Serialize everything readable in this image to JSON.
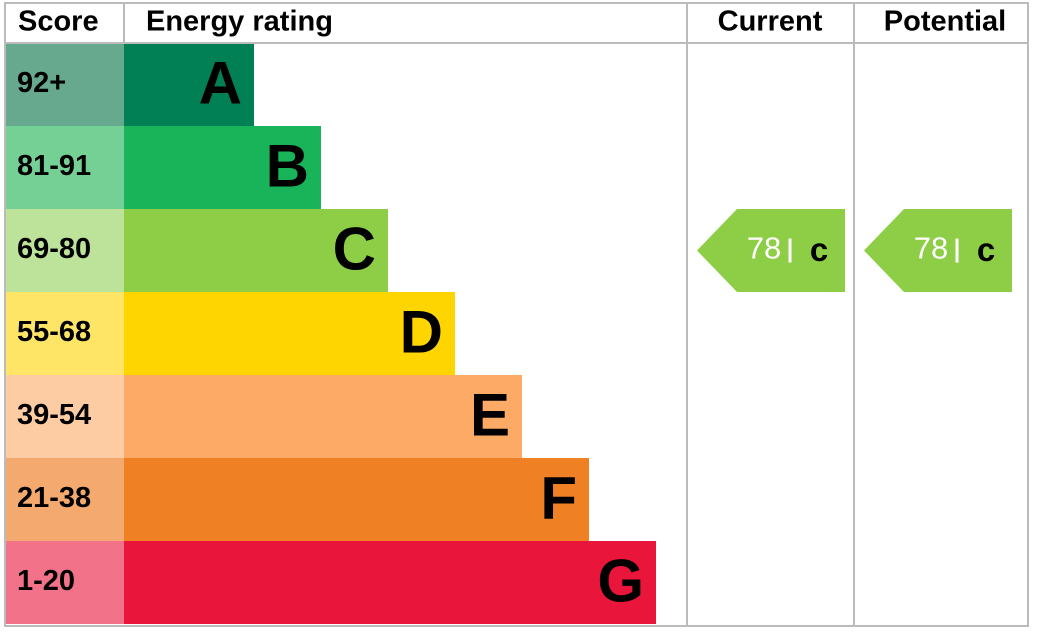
{
  "header": {
    "score": "Score",
    "rating": "Energy rating",
    "current": "Current",
    "potential": "Potential"
  },
  "bands": [
    {
      "score": "92+",
      "letter": "A",
      "color": "#008054",
      "score_color": "#66a98f"
    },
    {
      "score": "81-91",
      "letter": "B",
      "color": "#19b459",
      "score_color": "#75d095"
    },
    {
      "score": "69-80",
      "letter": "C",
      "color": "#8dce46",
      "score_color": "#bde39a"
    },
    {
      "score": "55-68",
      "letter": "D",
      "color": "#ffd500",
      "score_color": "#ffe566"
    },
    {
      "score": "39-54",
      "letter": "E",
      "color": "#fcaa65",
      "score_color": "#fdcca3"
    },
    {
      "score": "21-38",
      "letter": "F",
      "color": "#ef8023",
      "score_color": "#f4a96f"
    },
    {
      "score": "1-20",
      "letter": "G",
      "color": "#e9153b",
      "score_color": "#f27389"
    }
  ],
  "current": {
    "value": 78,
    "letter": "c",
    "color": "#8dce46"
  },
  "potential": {
    "value": 78,
    "letter": "c",
    "color": "#8dce46"
  }
}
